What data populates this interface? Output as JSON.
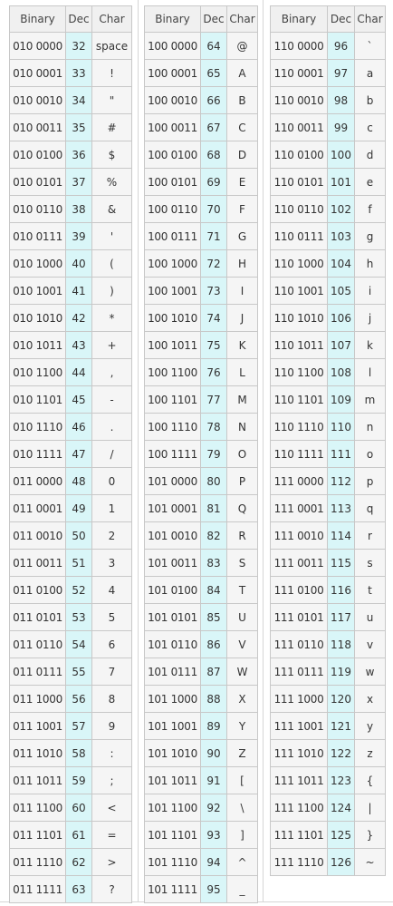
{
  "headers": {
    "binary": "Binary",
    "dec": "Dec",
    "char": "Char"
  },
  "tables": [
    {
      "rows": [
        [
          "010 0000",
          "32",
          "space"
        ],
        [
          "010 0001",
          "33",
          "!"
        ],
        [
          "010 0010",
          "34",
          "\""
        ],
        [
          "010 0011",
          "35",
          "#"
        ],
        [
          "010 0100",
          "36",
          "$"
        ],
        [
          "010 0101",
          "37",
          "%"
        ],
        [
          "010 0110",
          "38",
          "&"
        ],
        [
          "010 0111",
          "39",
          "'"
        ],
        [
          "010 1000",
          "40",
          "("
        ],
        [
          "010 1001",
          "41",
          ")"
        ],
        [
          "010 1010",
          "42",
          "*"
        ],
        [
          "010 1011",
          "43",
          "+"
        ],
        [
          "010 1100",
          "44",
          ","
        ],
        [
          "010 1101",
          "45",
          "-"
        ],
        [
          "010 1110",
          "46",
          "."
        ],
        [
          "010 1111",
          "47",
          "/"
        ],
        [
          "011 0000",
          "48",
          "0"
        ],
        [
          "011 0001",
          "49",
          "1"
        ],
        [
          "011 0010",
          "50",
          "2"
        ],
        [
          "011 0011",
          "51",
          "3"
        ],
        [
          "011 0100",
          "52",
          "4"
        ],
        [
          "011 0101",
          "53",
          "5"
        ],
        [
          "011 0110",
          "54",
          "6"
        ],
        [
          "011 0111",
          "55",
          "7"
        ],
        [
          "011 1000",
          "56",
          "8"
        ],
        [
          "011 1001",
          "57",
          "9"
        ],
        [
          "011 1010",
          "58",
          ":"
        ],
        [
          "011 1011",
          "59",
          ";"
        ],
        [
          "011 1100",
          "60",
          "<"
        ],
        [
          "011 1101",
          "61",
          "="
        ],
        [
          "011 1110",
          "62",
          ">"
        ],
        [
          "011 1111",
          "63",
          "?"
        ]
      ]
    },
    {
      "rows": [
        [
          "100 0000",
          "64",
          "@"
        ],
        [
          "100 0001",
          "65",
          "A"
        ],
        [
          "100 0010",
          "66",
          "B"
        ],
        [
          "100 0011",
          "67",
          "C"
        ],
        [
          "100 0100",
          "68",
          "D"
        ],
        [
          "100 0101",
          "69",
          "E"
        ],
        [
          "100 0110",
          "70",
          "F"
        ],
        [
          "100 0111",
          "71",
          "G"
        ],
        [
          "100 1000",
          "72",
          "H"
        ],
        [
          "100 1001",
          "73",
          "I"
        ],
        [
          "100 1010",
          "74",
          "J"
        ],
        [
          "100 1011",
          "75",
          "K"
        ],
        [
          "100 1100",
          "76",
          "L"
        ],
        [
          "100 1101",
          "77",
          "M"
        ],
        [
          "100 1110",
          "78",
          "N"
        ],
        [
          "100 1111",
          "79",
          "O"
        ],
        [
          "101 0000",
          "80",
          "P"
        ],
        [
          "101 0001",
          "81",
          "Q"
        ],
        [
          "101 0010",
          "82",
          "R"
        ],
        [
          "101 0011",
          "83",
          "S"
        ],
        [
          "101 0100",
          "84",
          "T"
        ],
        [
          "101 0101",
          "85",
          "U"
        ],
        [
          "101 0110",
          "86",
          "V"
        ],
        [
          "101 0111",
          "87",
          "W"
        ],
        [
          "101 1000",
          "88",
          "X"
        ],
        [
          "101 1001",
          "89",
          "Y"
        ],
        [
          "101 1010",
          "90",
          "Z"
        ],
        [
          "101 1011",
          "91",
          "["
        ],
        [
          "101 1100",
          "92",
          "\\"
        ],
        [
          "101 1101",
          "93",
          "]"
        ],
        [
          "101 1110",
          "94",
          "^"
        ],
        [
          "101 1111",
          "95",
          "_"
        ]
      ]
    },
    {
      "rows": [
        [
          "110 0000",
          "96",
          "`"
        ],
        [
          "110 0001",
          "97",
          "a"
        ],
        [
          "110 0010",
          "98",
          "b"
        ],
        [
          "110 0011",
          "99",
          "c"
        ],
        [
          "110 0100",
          "100",
          "d"
        ],
        [
          "110 0101",
          "101",
          "e"
        ],
        [
          "110 0110",
          "102",
          "f"
        ],
        [
          "110 0111",
          "103",
          "g"
        ],
        [
          "110 1000",
          "104",
          "h"
        ],
        [
          "110 1001",
          "105",
          "i"
        ],
        [
          "110 1010",
          "106",
          "j"
        ],
        [
          "110 1011",
          "107",
          "k"
        ],
        [
          "110 1100",
          "108",
          "l"
        ],
        [
          "110 1101",
          "109",
          "m"
        ],
        [
          "110 1110",
          "110",
          "n"
        ],
        [
          "110 1111",
          "111",
          "o"
        ],
        [
          "111 0000",
          "112",
          "p"
        ],
        [
          "111 0001",
          "113",
          "q"
        ],
        [
          "111 0010",
          "114",
          "r"
        ],
        [
          "111 0011",
          "115",
          "s"
        ],
        [
          "111 0100",
          "116",
          "t"
        ],
        [
          "111 0101",
          "117",
          "u"
        ],
        [
          "111 0110",
          "118",
          "v"
        ],
        [
          "111 0111",
          "119",
          "w"
        ],
        [
          "111 1000",
          "120",
          "x"
        ],
        [
          "111 1001",
          "121",
          "y"
        ],
        [
          "111 1010",
          "122",
          "z"
        ],
        [
          "111 1011",
          "123",
          "{"
        ],
        [
          "111 1100",
          "124",
          "|"
        ],
        [
          "111 1101",
          "125",
          "}"
        ],
        [
          "111 1110",
          "126",
          "~"
        ]
      ]
    }
  ],
  "colors": {
    "dec_column": "#d9f6f8",
    "cell_background": "#f5f5f5",
    "header_background": "#f0f0f0",
    "border": "#c8c8c8"
  }
}
